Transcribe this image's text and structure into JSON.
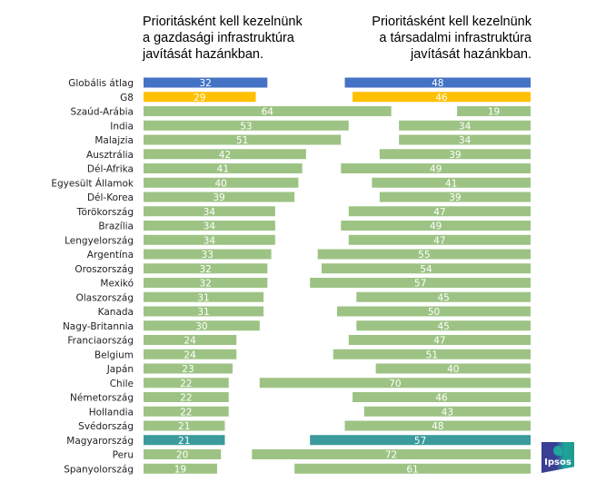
{
  "chart_data": {
    "type": "bar",
    "orientation": "horizontal",
    "layout": "two-panel",
    "categories": [
      "Globális átlag",
      "G8",
      "Szaúd-Arábia",
      "India",
      "Malajzia",
      "Ausztrália",
      "Dél-Afrika",
      "Egyesült Államok",
      "Dél-Korea",
      "Törökország",
      "Brazília",
      "Lengyelország",
      "Argentína",
      "Oroszország",
      "Mexikó",
      "Olaszország",
      "Kanada",
      "Nagy-Britannia",
      "Franciaország",
      "Belgium",
      "Japán",
      "Chile",
      "Németország",
      "Hollandia",
      "Svédország",
      "Magyarország",
      "Peru",
      "Spanyolország"
    ],
    "series": [
      {
        "name": "Prioritásként kell kezelnünk a gazdasági infrastruktúra javítását hazánkban.",
        "title": "Prioritásként kell kezelnünk\na gazdasági infrastruktúra\njavítását hazánkban.",
        "align": "left",
        "values": [
          32,
          29,
          64,
          53,
          51,
          42,
          41,
          40,
          39,
          34,
          34,
          34,
          33,
          32,
          32,
          31,
          31,
          30,
          24,
          24,
          23,
          22,
          22,
          22,
          21,
          21,
          20,
          19
        ]
      },
      {
        "name": "Prioritásként kell kezelnünk a társadalmi infrastruktúra javítását hazánkban.",
        "title": "Prioritásként kell kezelnünk\na társadalmi infrastruktúra\njavítását hazánkban.",
        "align": "right",
        "values": [
          48,
          46,
          19,
          34,
          34,
          39,
          49,
          41,
          39,
          47,
          49,
          47,
          55,
          54,
          57,
          45,
          50,
          45,
          47,
          51,
          40,
          70,
          46,
          43,
          48,
          57,
          72,
          61
        ]
      }
    ],
    "highlight": {
      "Globális átlag": "#4472c4",
      "G8": "#ffc000",
      "Magyarország": "#3a9a9c"
    },
    "default_color": "#9dc384",
    "value_label_color": "#ffffff",
    "xlim": [
      0,
      100
    ],
    "grid": false,
    "legend": "none"
  },
  "logo": {
    "text": "Ipsos",
    "icon": "ipsos-logo-icon"
  }
}
